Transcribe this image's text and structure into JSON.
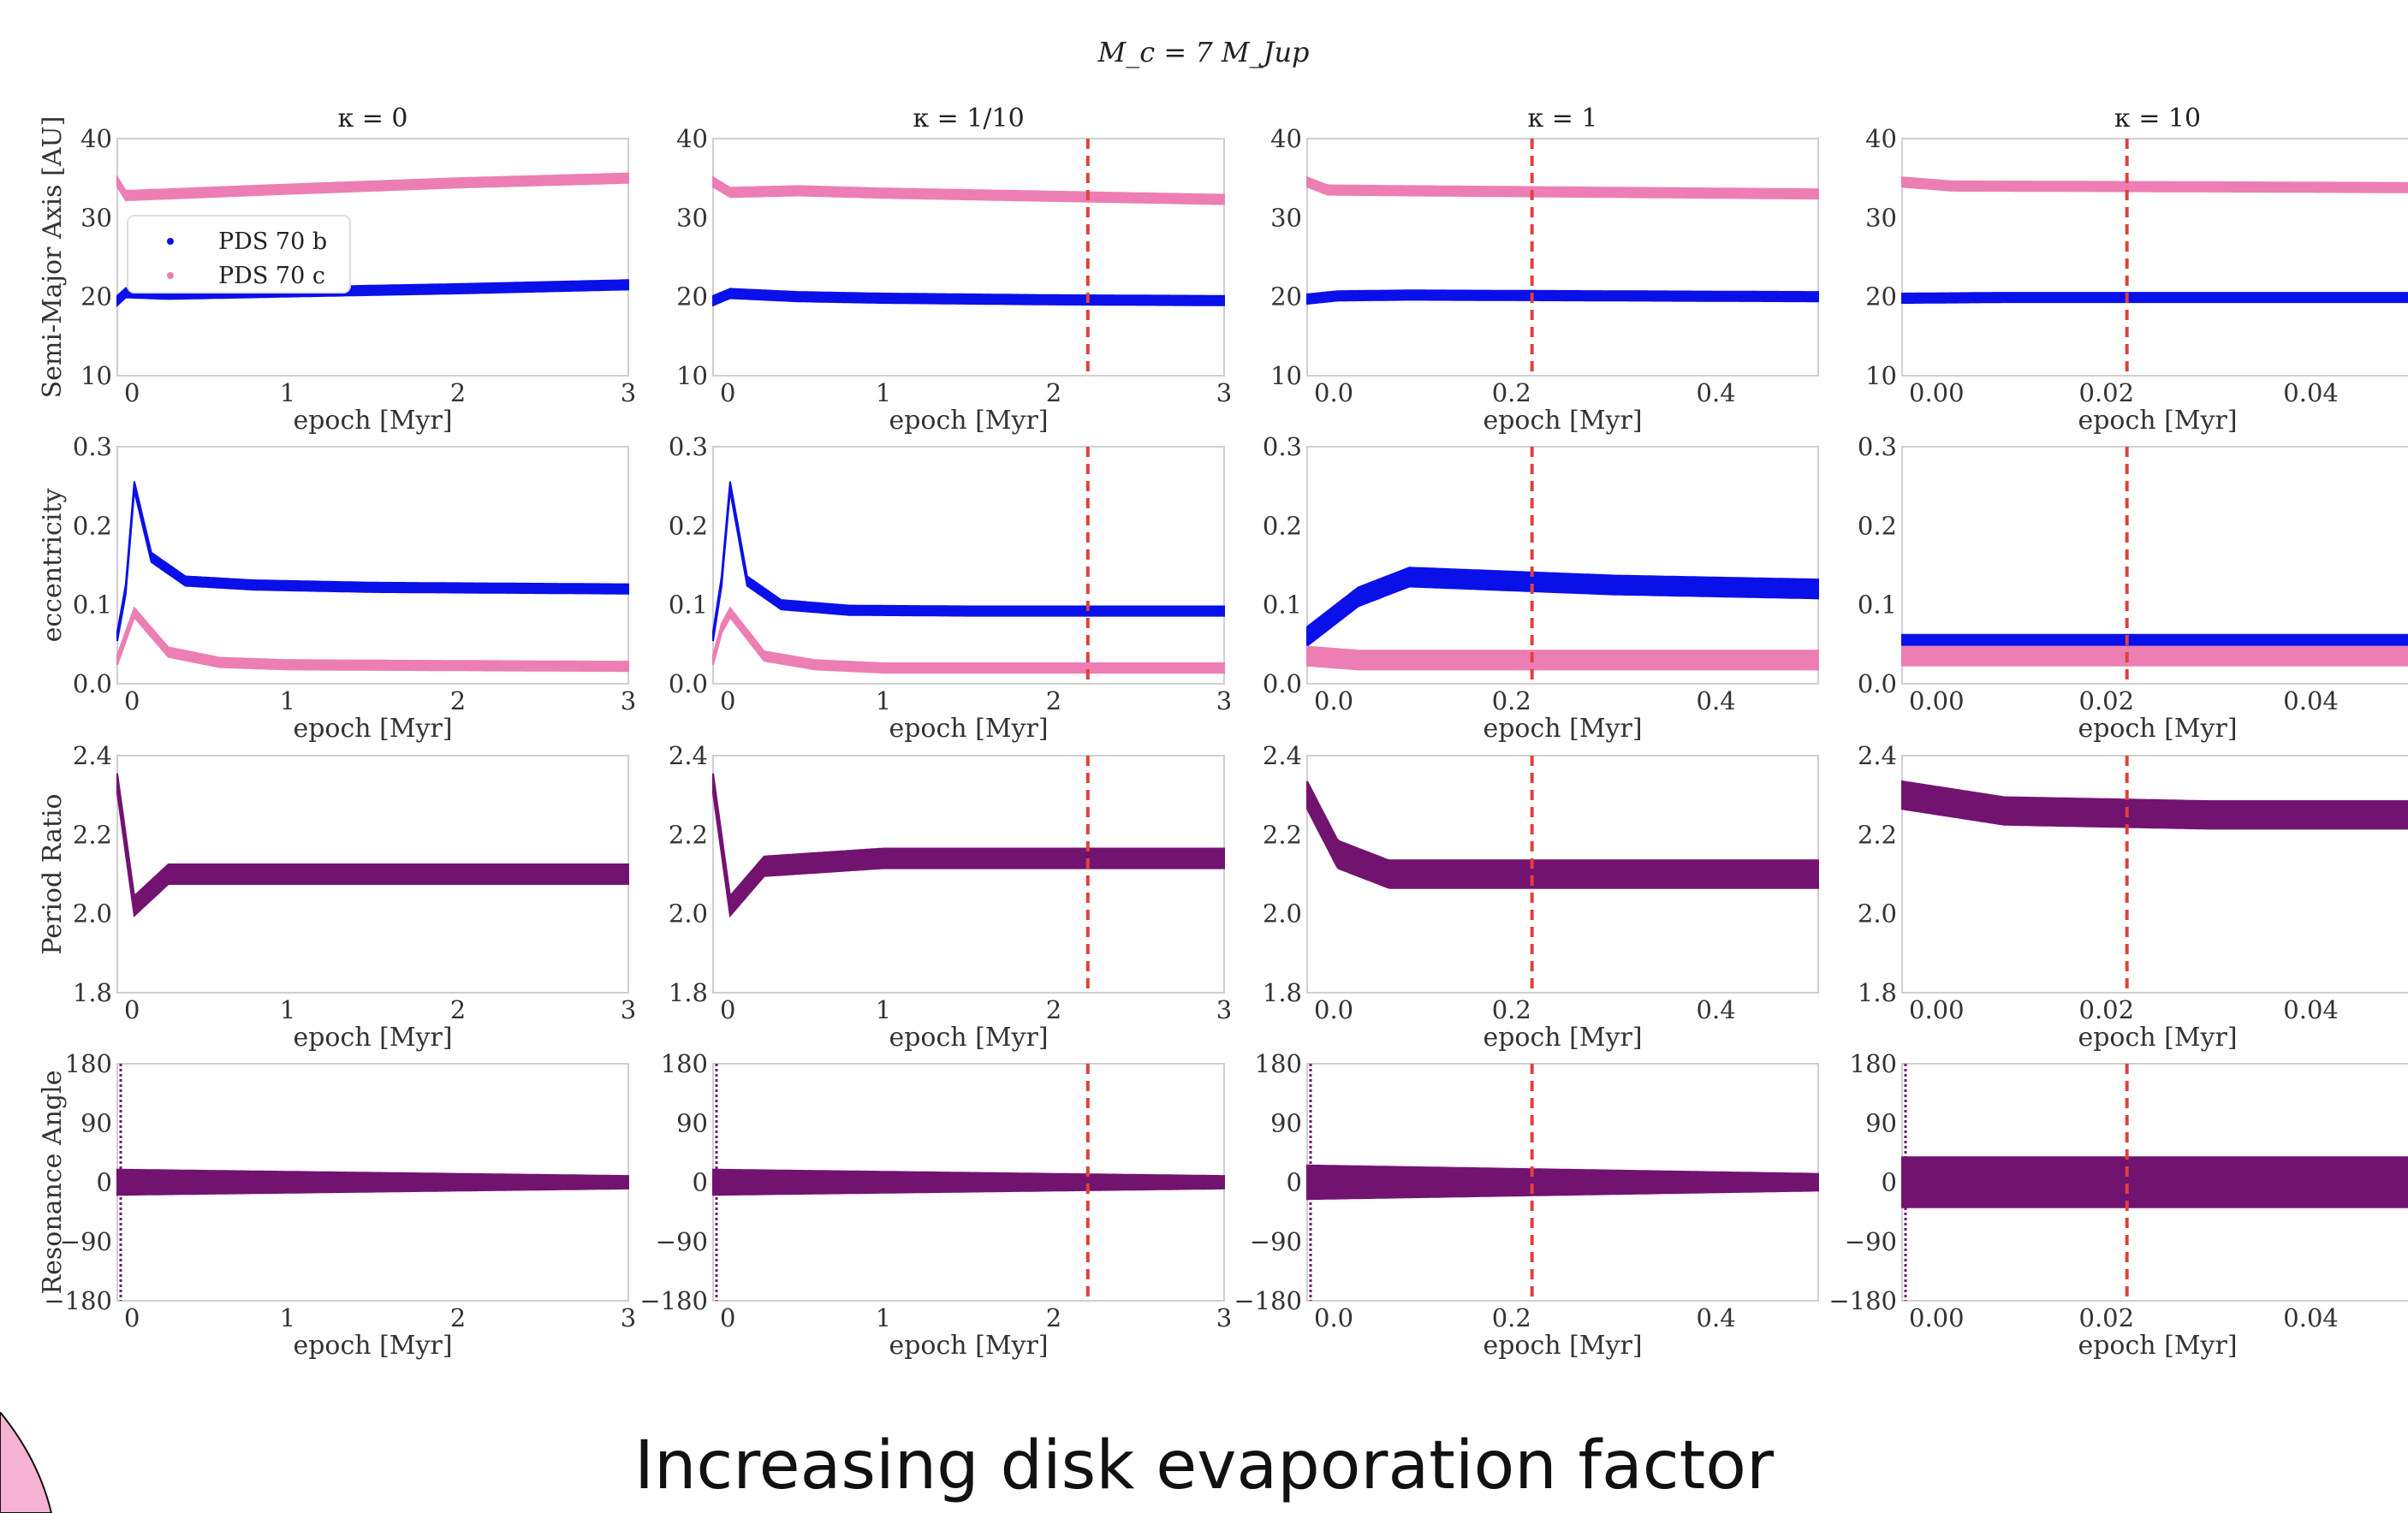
{
  "caption": "Increasing disk evaporation factor",
  "colors": {
    "planet_b": "#0a10e8",
    "planet_c": "#ec7eb4",
    "period_ratio": "#731370",
    "resonance": "#731370",
    "dispersal_line": "#e0413a",
    "corner_decoration": "#f6b3d4"
  },
  "chart_data": {
    "type": "line",
    "title": "M_c = 7 M_Jup",
    "grid": false,
    "legend": {
      "placement": "upper-left",
      "panel": "semi-major-axis κ=0",
      "entries": [
        "PDS 70 b",
        "PDS 70 c"
      ]
    },
    "columns": [
      {
        "title": "κ = 0",
        "kappa": 0,
        "xlim": [
          0,
          3
        ],
        "xticks": [
          "0",
          "1",
          "2",
          "3"
        ],
        "dispersal_time_myr": null
      },
      {
        "title": "κ = 1/10",
        "kappa": 0.1,
        "xlim": [
          0,
          3
        ],
        "xticks": [
          "0",
          "1",
          "2",
          "3"
        ],
        "dispersal_time_myr": 2.2
      },
      {
        "title": "κ = 1",
        "kappa": 1,
        "xlim": [
          0,
          0.5
        ],
        "xticks": [
          "0.0",
          "0.2",
          "0.4"
        ],
        "dispersal_time_myr": 0.22
      },
      {
        "title": "κ = 10",
        "kappa": 10,
        "xlim": [
          0,
          0.05
        ],
        "xticks": [
          "0.00",
          "0.02",
          "0.04"
        ],
        "dispersal_time_myr": 0.022
      }
    ],
    "rows": [
      {
        "ylabel": "Semi-Major Axis [AU]",
        "xlabel": "epoch [Myr]",
        "ylim": [
          10,
          40
        ],
        "yticks": [
          "10",
          "20",
          "30",
          "40"
        ]
      },
      {
        "ylabel": "eccentricity",
        "xlabel": "epoch [Myr]",
        "ylim": [
          0,
          0.3
        ],
        "yticks": [
          "0.0",
          "0.1",
          "0.2",
          "0.3"
        ]
      },
      {
        "ylabel": "Period Ratio",
        "xlabel": "epoch [Myr]",
        "ylim": [
          1.8,
          2.4
        ],
        "yticks": [
          "1.8",
          "2.0",
          "2.2",
          "2.4"
        ]
      },
      {
        "ylabel": "Resonance Angle",
        "xlabel": "epoch [Myr]",
        "ylim": [
          -180,
          180
        ],
        "yticks": [
          "−180",
          "−90",
          "0",
          "90",
          "180"
        ]
      }
    ],
    "series": [
      {
        "name": "PDS 70 b",
        "panel": "semi-major-axis",
        "kappa": 0,
        "x": [
          0,
          0.05,
          0.3,
          1,
          2,
          3
        ],
        "y": [
          19.5,
          20.5,
          20.3,
          20.6,
          21.0,
          21.5
        ]
      },
      {
        "name": "PDS 70 c",
        "panel": "semi-major-axis",
        "kappa": 0,
        "x": [
          0,
          0.05,
          0.3,
          1,
          2,
          3
        ],
        "y": [
          34.5,
          32.8,
          33.0,
          33.6,
          34.4,
          35.0
        ]
      },
      {
        "name": "PDS 70 b",
        "panel": "semi-major-axis",
        "kappa": 0.1,
        "x": [
          0,
          0.1,
          0.5,
          1,
          2,
          3
        ],
        "y": [
          19.5,
          20.4,
          20.0,
          19.8,
          19.6,
          19.5
        ]
      },
      {
        "name": "PDS 70 c",
        "panel": "semi-major-axis",
        "kappa": 0.1,
        "x": [
          0,
          0.1,
          0.5,
          1,
          2,
          3
        ],
        "y": [
          34.5,
          33.2,
          33.4,
          33.1,
          32.7,
          32.3
        ]
      },
      {
        "name": "PDS 70 b",
        "panel": "semi-major-axis",
        "kappa": 1,
        "x": [
          0,
          0.03,
          0.1,
          0.3,
          0.5
        ],
        "y": [
          19.7,
          20.1,
          20.2,
          20.1,
          20.0
        ]
      },
      {
        "name": "PDS 70 c",
        "panel": "semi-major-axis",
        "kappa": 1,
        "x": [
          0,
          0.02,
          0.1,
          0.3,
          0.5
        ],
        "y": [
          34.5,
          33.5,
          33.4,
          33.2,
          33.0
        ]
      },
      {
        "name": "PDS 70 b",
        "panel": "semi-major-axis",
        "kappa": 10,
        "x": [
          0,
          0.01,
          0.03,
          0.05
        ],
        "y": [
          19.8,
          19.9,
          19.9,
          19.9
        ]
      },
      {
        "name": "PDS 70 c",
        "panel": "semi-major-axis",
        "kappa": 10,
        "x": [
          0,
          0.005,
          0.03,
          0.05
        ],
        "y": [
          34.5,
          34.0,
          33.9,
          33.8
        ]
      },
      {
        "name": "PDS 70 b",
        "panel": "eccentricity",
        "kappa": 0,
        "x": [
          0,
          0.05,
          0.1,
          0.2,
          0.4,
          0.8,
          1.5,
          3
        ],
        "y": [
          0.06,
          0.12,
          0.25,
          0.16,
          0.13,
          0.125,
          0.122,
          0.12
        ]
      },
      {
        "name": "PDS 70 c",
        "panel": "eccentricity",
        "kappa": 0,
        "x": [
          0,
          0.05,
          0.1,
          0.3,
          0.6,
          1,
          3
        ],
        "y": [
          0.03,
          0.06,
          0.09,
          0.04,
          0.027,
          0.024,
          0.022
        ]
      },
      {
        "name": "PDS 70 b",
        "panel": "eccentricity",
        "kappa": 0.1,
        "x": [
          0,
          0.05,
          0.1,
          0.2,
          0.4,
          0.8,
          1.5,
          3
        ],
        "y": [
          0.06,
          0.13,
          0.25,
          0.13,
          0.1,
          0.093,
          0.092,
          0.092
        ]
      },
      {
        "name": "PDS 70 c",
        "panel": "eccentricity",
        "kappa": 0.1,
        "x": [
          0,
          0.05,
          0.1,
          0.3,
          0.6,
          1,
          3
        ],
        "y": [
          0.03,
          0.07,
          0.09,
          0.035,
          0.024,
          0.02,
          0.02
        ]
      },
      {
        "name": "PDS 70 b",
        "panel": "eccentricity",
        "kappa": 1,
        "x": [
          0,
          0.02,
          0.05,
          0.1,
          0.2,
          0.3,
          0.5
        ],
        "y": [
          0.06,
          0.08,
          0.11,
          0.135,
          0.13,
          0.125,
          0.12
        ]
      },
      {
        "name": "PDS 70 c",
        "panel": "eccentricity",
        "kappa": 1,
        "x": [
          0,
          0.05,
          0.1,
          0.2,
          0.3,
          0.5
        ],
        "y": [
          0.035,
          0.03,
          0.03,
          0.03,
          0.03,
          0.03
        ]
      },
      {
        "name": "PDS 70 b",
        "panel": "eccentricity",
        "kappa": 10,
        "x": [
          0,
          0.01,
          0.02,
          0.03,
          0.04,
          0.05
        ],
        "y": [
          0.05,
          0.05,
          0.05,
          0.05,
          0.05,
          0.05
        ]
      },
      {
        "name": "PDS 70 c",
        "panel": "eccentricity",
        "kappa": 10,
        "x": [
          0,
          0.01,
          0.02,
          0.03,
          0.04,
          0.05
        ],
        "y": [
          0.035,
          0.035,
          0.035,
          0.035,
          0.035,
          0.035
        ]
      },
      {
        "name": "",
        "panel": "period-ratio",
        "kappa": 0,
        "x": [
          0,
          0.1,
          0.3,
          1,
          2,
          3
        ],
        "y": [
          2.33,
          2.02,
          2.1,
          2.1,
          2.1,
          2.1
        ]
      },
      {
        "name": "",
        "panel": "period-ratio",
        "kappa": 0.1,
        "x": [
          0,
          0.1,
          0.3,
          1,
          2,
          3
        ],
        "y": [
          2.33,
          2.02,
          2.12,
          2.14,
          2.14,
          2.14
        ]
      },
      {
        "name": "",
        "panel": "period-ratio",
        "kappa": 1,
        "x": [
          0,
          0.03,
          0.08,
          0.15,
          0.3,
          0.5
        ],
        "y": [
          2.3,
          2.15,
          2.1,
          2.1,
          2.1,
          2.1
        ]
      },
      {
        "name": "",
        "panel": "period-ratio",
        "kappa": 10,
        "x": [
          0,
          0.01,
          0.03,
          0.05
        ],
        "y": [
          2.3,
          2.26,
          2.25,
          2.25
        ]
      },
      {
        "name": "",
        "panel": "resonance-angle",
        "kappa": 0,
        "x": [
          0,
          0.05,
          0.2,
          1,
          2,
          3
        ],
        "y": [
          0,
          0,
          0,
          0,
          0,
          0
        ]
      },
      {
        "name": "",
        "panel": "resonance-angle",
        "kappa": 0.1,
        "x": [
          0,
          0.05,
          0.3,
          1,
          2,
          3
        ],
        "y": [
          0,
          0,
          0,
          0,
          0,
          0
        ]
      },
      {
        "name": "",
        "panel": "resonance-angle",
        "kappa": 1,
        "x": [
          0,
          0.02,
          0.1,
          0.3,
          0.5
        ],
        "y": [
          0,
          0,
          0,
          0,
          0
        ]
      },
      {
        "name": "",
        "panel": "resonance-angle",
        "kappa": 10,
        "x": [
          0,
          0.005,
          0.02,
          0.04,
          0.05
        ],
        "y": [
          0,
          0,
          0,
          0,
          0
        ]
      }
    ]
  }
}
